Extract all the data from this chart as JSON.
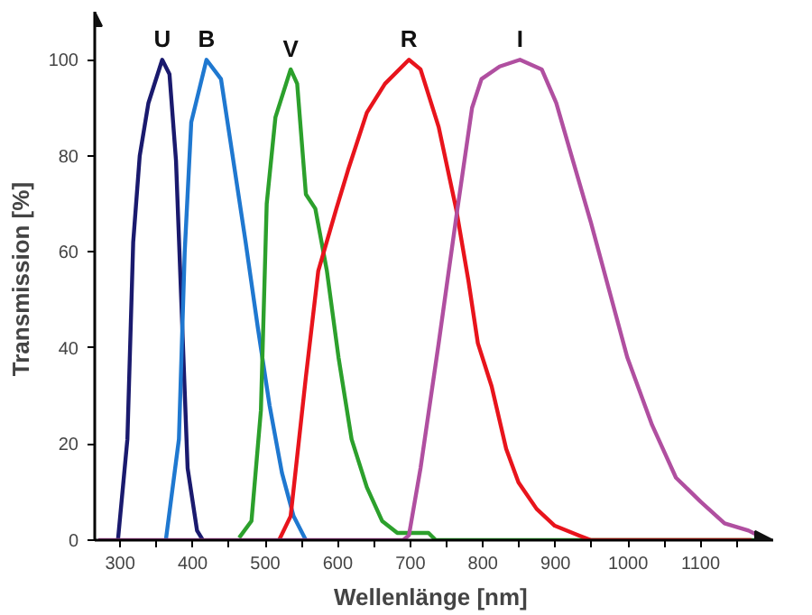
{
  "chart_data": {
    "type": "line",
    "xlabel": "Wellenlänge  [nm]",
    "ylabel": "Transmission  [%]",
    "xlim": [
      265,
      1200
    ],
    "ylim": [
      0,
      110
    ],
    "xticks": [
      300,
      {
        "value": 350,
        "label": null
      },
      400,
      {
        "value": 450,
        "label": null
      },
      500,
      {
        "value": 550,
        "label": null
      },
      600,
      {
        "value": 650,
        "label": null
      },
      700,
      {
        "value": 750,
        "label": null
      },
      800,
      {
        "value": 850,
        "label": null
      },
      900,
      {
        "value": 950,
        "label": null
      },
      1000,
      {
        "value": 1050,
        "label": null
      },
      1100,
      {
        "value": 1150,
        "label": null
      }
    ],
    "yticks": [
      0,
      20,
      40,
      60,
      80,
      100
    ],
    "grid": false,
    "marker": "none",
    "line_style": "solid",
    "series": [
      {
        "name": "U",
        "color": "#1a1a6e",
        "x": [
          297,
          310,
          318,
          327,
          339,
          358,
          368,
          377,
          385,
          393,
          406,
          414
        ],
        "values": [
          0,
          21,
          62,
          80,
          91,
          100,
          97,
          79,
          47,
          15,
          2,
          0
        ]
      },
      {
        "name": "B",
        "color": "#1f78d0",
        "x": [
          363,
          381,
          389,
          398,
          419,
          439,
          456,
          473,
          490,
          506,
          523,
          539,
          556
        ],
        "values": [
          0,
          21,
          60,
          87,
          100,
          96,
          79,
          62,
          44,
          28,
          14,
          5,
          0
        ]
      },
      {
        "name": "V",
        "color": "#2ca02c",
        "x": [
          464,
          481,
          494,
          502,
          514,
          535,
          544,
          556,
          569,
          585,
          601,
          619,
          640,
          661,
          682,
          725,
          735,
          1190
        ],
        "values": [
          0.5,
          4,
          27,
          70,
          88,
          98,
          95,
          72,
          69,
          56,
          38,
          21,
          11,
          4,
          1.5,
          1.5,
          0,
          0
        ]
      },
      {
        "name": "R",
        "color": "#e8141c",
        "x": [
          519,
          535,
          556,
          573,
          598,
          614,
          640,
          665,
          698,
          714,
          739,
          763,
          780,
          793,
          812,
          832,
          849,
          874,
          899,
          932,
          949,
          1170
        ],
        "values": [
          0,
          5,
          34,
          56,
          69,
          77,
          89,
          95,
          100,
          98,
          86,
          69,
          54,
          41,
          32,
          19,
          12,
          6.5,
          3,
          1,
          0,
          0
        ]
      },
      {
        "name": "I",
        "color": "#b04fa0",
        "x": [
          270,
          690,
          698,
          714,
          739,
          763,
          785,
          798,
          823,
          851,
          881,
          901,
          924,
          949,
          974,
          999,
          1033,
          1066,
          1100,
          1133,
          1166,
          1192
        ],
        "values": [
          0,
          0,
          1,
          15,
          41,
          67,
          90,
          96,
          98.6,
          100,
          98,
          91,
          79,
          66,
          52,
          38,
          24,
          13,
          8,
          3.5,
          2,
          0
        ]
      }
    ]
  }
}
